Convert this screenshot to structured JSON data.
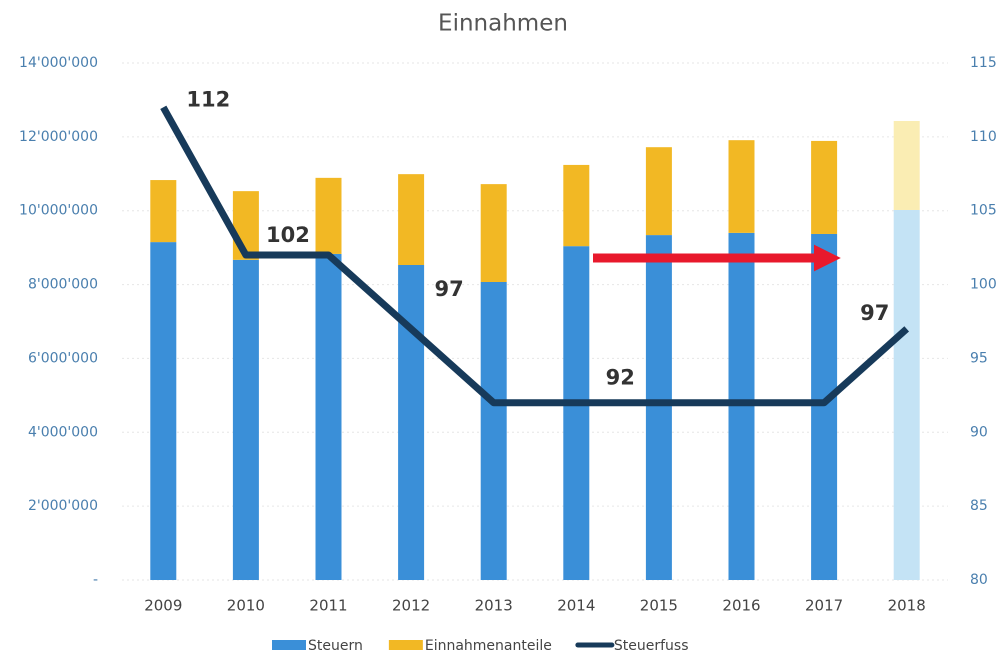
{
  "chart_data": {
    "type": "bar-line",
    "title": "Einnahmen",
    "categories": [
      "2009",
      "2010",
      "2011",
      "2012",
      "2013",
      "2014",
      "2015",
      "2016",
      "2017",
      "2018"
    ],
    "series": [
      {
        "name": "Steuern",
        "type": "bar",
        "color": "#3a8fd8",
        "colors": [
          "#3a8fd8",
          "#3a8fd8",
          "#3a8fd8",
          "#3a8fd8",
          "#3a8fd8",
          "#3a8fd8",
          "#3a8fd8",
          "#3a8fd8",
          "#3a8fd8",
          "#c4e3f5"
        ],
        "values": [
          9150000,
          8670000,
          8830000,
          8530000,
          8070000,
          9040000,
          9340000,
          9400000,
          9370000,
          10020000
        ]
      },
      {
        "name": "Einnahmenanteile",
        "type": "bar",
        "color": "#f2b824",
        "colors": [
          "#f2b824",
          "#f2b824",
          "#f2b824",
          "#f2b824",
          "#f2b824",
          "#f2b824",
          "#f2b824",
          "#f2b824",
          "#f2b824",
          "#faedb3"
        ],
        "values": [
          1680000,
          1860000,
          2060000,
          2460000,
          2650000,
          2200000,
          2380000,
          2510000,
          2520000,
          2410000
        ]
      },
      {
        "name": "Steuerfuss",
        "type": "line",
        "axis": "y2",
        "color": "#173a5a",
        "values": [
          112,
          102,
          102,
          97,
          92,
          92,
          92,
          92,
          92,
          97
        ],
        "value_labels": [
          "112",
          "102",
          null,
          "97",
          null,
          "92",
          null,
          null,
          null,
          "97"
        ]
      }
    ],
    "ylim": [
      0,
      14000000
    ],
    "yticks": [
      {
        "value": 0,
        "label": "-"
      },
      {
        "value": 2000000,
        "label": "2'000'000"
      },
      {
        "value": 4000000,
        "label": "4'000'000"
      },
      {
        "value": 6000000,
        "label": "6'000'000"
      },
      {
        "value": 8000000,
        "label": "8'000'000"
      },
      {
        "value": 10000000,
        "label": "10'000'000"
      },
      {
        "value": 12000000,
        "label": "12'000'000"
      },
      {
        "value": 14000000,
        "label": "14'000'000"
      }
    ],
    "y2lim": [
      80,
      115
    ],
    "y2ticks": [
      80,
      85,
      90,
      95,
      100,
      105,
      110,
      115
    ],
    "grid": true,
    "legend": "bottom"
  }
}
